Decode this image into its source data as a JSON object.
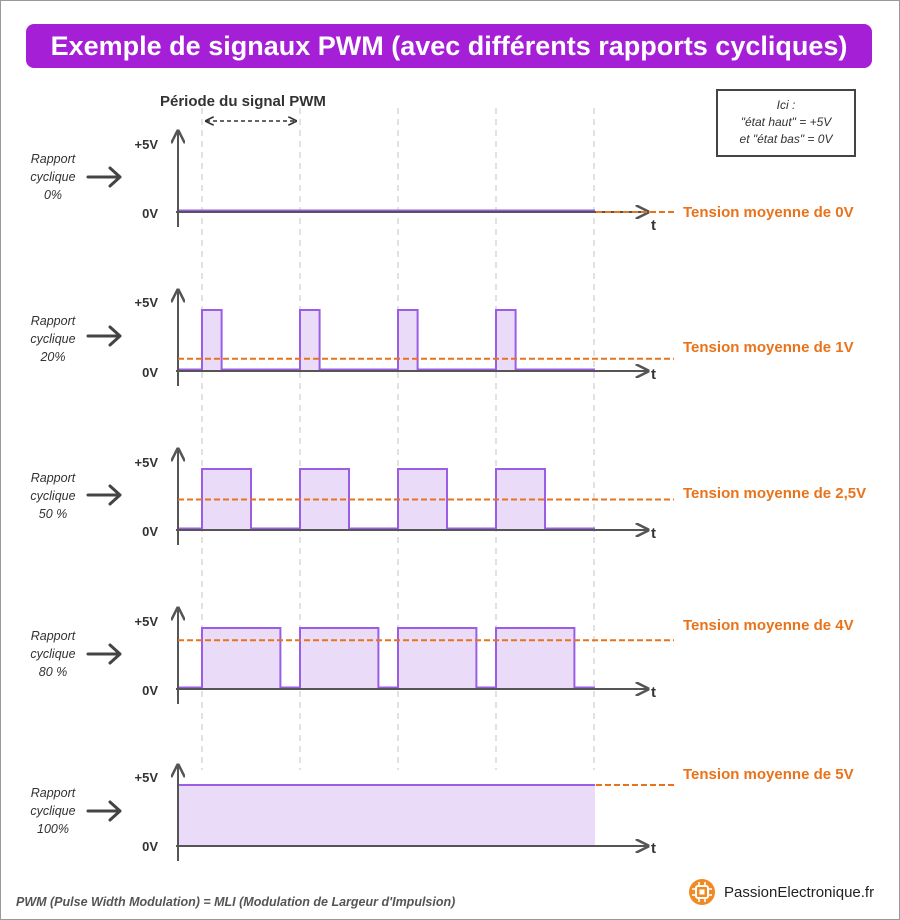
{
  "title": "Exemple de signaux PWM (avec différents rapports cycliques)",
  "period_label": "Période du signal PWM",
  "note": {
    "line1": "Ici :",
    "line2": "\"état haut\" = +5V",
    "line3": "et \"état bas\" = 0V"
  },
  "axis": {
    "high": "+5V",
    "low": "0V",
    "time": "t"
  },
  "rows": [
    {
      "label1": "Rapport",
      "label2": "cyclique",
      "duty_text": "0%",
      "duty": 0.0,
      "average": "Tension moyenne de 0V"
    },
    {
      "label1": "Rapport",
      "label2": "cyclique",
      "duty_text": "20%",
      "duty": 0.2,
      "average": "Tension moyenne de 1V"
    },
    {
      "label1": "Rapport",
      "label2": "cyclique",
      "duty_text": "50 %",
      "duty": 0.5,
      "average": "Tension moyenne de 2,5V"
    },
    {
      "label1": "Rapport",
      "label2": "cyclique",
      "duty_text": "80 %",
      "duty": 0.8,
      "average": "Tension moyenne de 4V"
    },
    {
      "label1": "Rapport",
      "label2": "cyclique",
      "duty_text": "100%",
      "duty": 1.0,
      "average": "Tension moyenne de 5V"
    }
  ],
  "footer": "PWM (Pulse Width Modulation) = MLI (Modulation de Largeur d'Impulsion)",
  "brand": {
    "name": "PassionElectronique.fr",
    "icon": "chip-icon"
  },
  "colors": {
    "title_bg": "#a51fd6",
    "signal": "#9b5de5",
    "signal_fill": "#eadcf9",
    "average": "#e8731a",
    "axis": "#555555",
    "guide": "#cfcfcf"
  }
}
